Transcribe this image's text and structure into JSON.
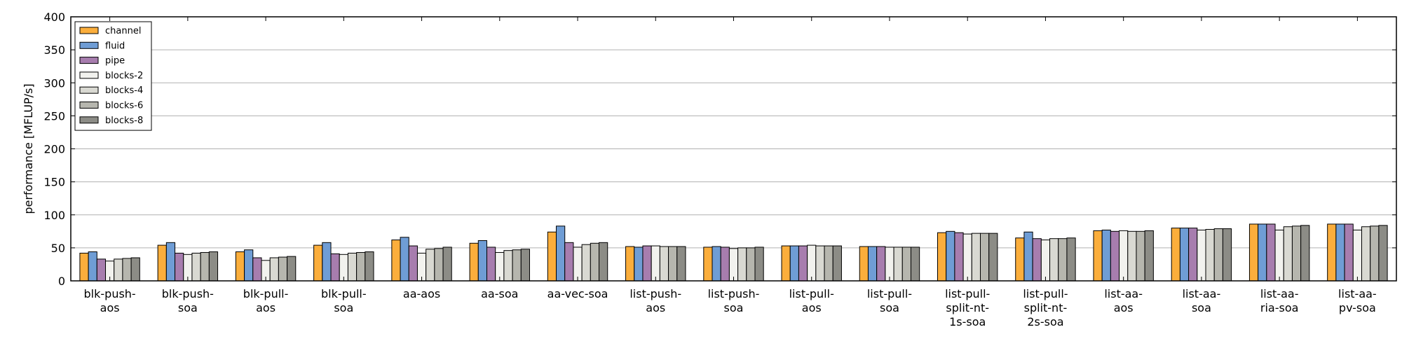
{
  "chart_data": {
    "type": "bar",
    "title": "",
    "xlabel": "",
    "ylabel": "performance [MFLUP/s]",
    "ylim": [
      0,
      400
    ],
    "yticks": [
      0,
      50,
      100,
      150,
      200,
      250,
      300,
      350,
      400
    ],
    "grid": "horizontal",
    "legend_position": "top-left",
    "categories": [
      "blk-push-\naos",
      "blk-push-\nsoa",
      "blk-pull-\naos",
      "blk-pull-\nsoa",
      "aa-aos",
      "aa-soa",
      "aa-vec-soa",
      "list-push-\naos",
      "list-push-\nsoa",
      "list-pull-\naos",
      "list-pull-\nsoa",
      "list-pull-\nsplit-nt-\n1s-soa",
      "list-pull-\nsplit-nt-\n2s-soa",
      "list-aa-\naos",
      "list-aa-\nsoa",
      "list-aa-\nria-soa",
      "list-aa-\npv-soa"
    ],
    "series": [
      {
        "name": "channel",
        "color": "#FBAE3C",
        "values": [
          42,
          54,
          44,
          54,
          62,
          57,
          74,
          52,
          51,
          53,
          52,
          73,
          65,
          76,
          80,
          86,
          86
        ]
      },
      {
        "name": "fluid",
        "color": "#6F9DD5",
        "values": [
          44,
          58,
          47,
          58,
          66,
          61,
          83,
          51,
          52,
          53,
          52,
          75,
          74,
          77,
          80,
          86,
          86
        ]
      },
      {
        "name": "pipe",
        "color": "#A77DAE",
        "values": [
          33,
          42,
          35,
          41,
          53,
          51,
          58,
          53,
          51,
          53,
          52,
          73,
          64,
          75,
          80,
          86,
          86
        ]
      },
      {
        "name": "blocks-2",
        "color": "#F2F2EE",
        "values": [
          30,
          40,
          31,
          40,
          42,
          43,
          51,
          53,
          49,
          54,
          51,
          71,
          62,
          76,
          77,
          77,
          77
        ]
      },
      {
        "name": "blocks-4",
        "color": "#D9D9D2",
        "values": [
          33,
          42,
          35,
          42,
          48,
          46,
          55,
          52,
          50,
          53,
          51,
          72,
          64,
          75,
          78,
          82,
          82
        ]
      },
      {
        "name": "blocks-6",
        "color": "#B6B6AE",
        "values": [
          34,
          43,
          36,
          43,
          49,
          47,
          57,
          52,
          50,
          53,
          51,
          72,
          64,
          75,
          79,
          83,
          83
        ]
      },
      {
        "name": "blocks-8",
        "color": "#8C8C86",
        "values": [
          35,
          44,
          37,
          44,
          51,
          48,
          58,
          52,
          51,
          53,
          51,
          72,
          65,
          76,
          79,
          84,
          84
        ]
      }
    ]
  }
}
